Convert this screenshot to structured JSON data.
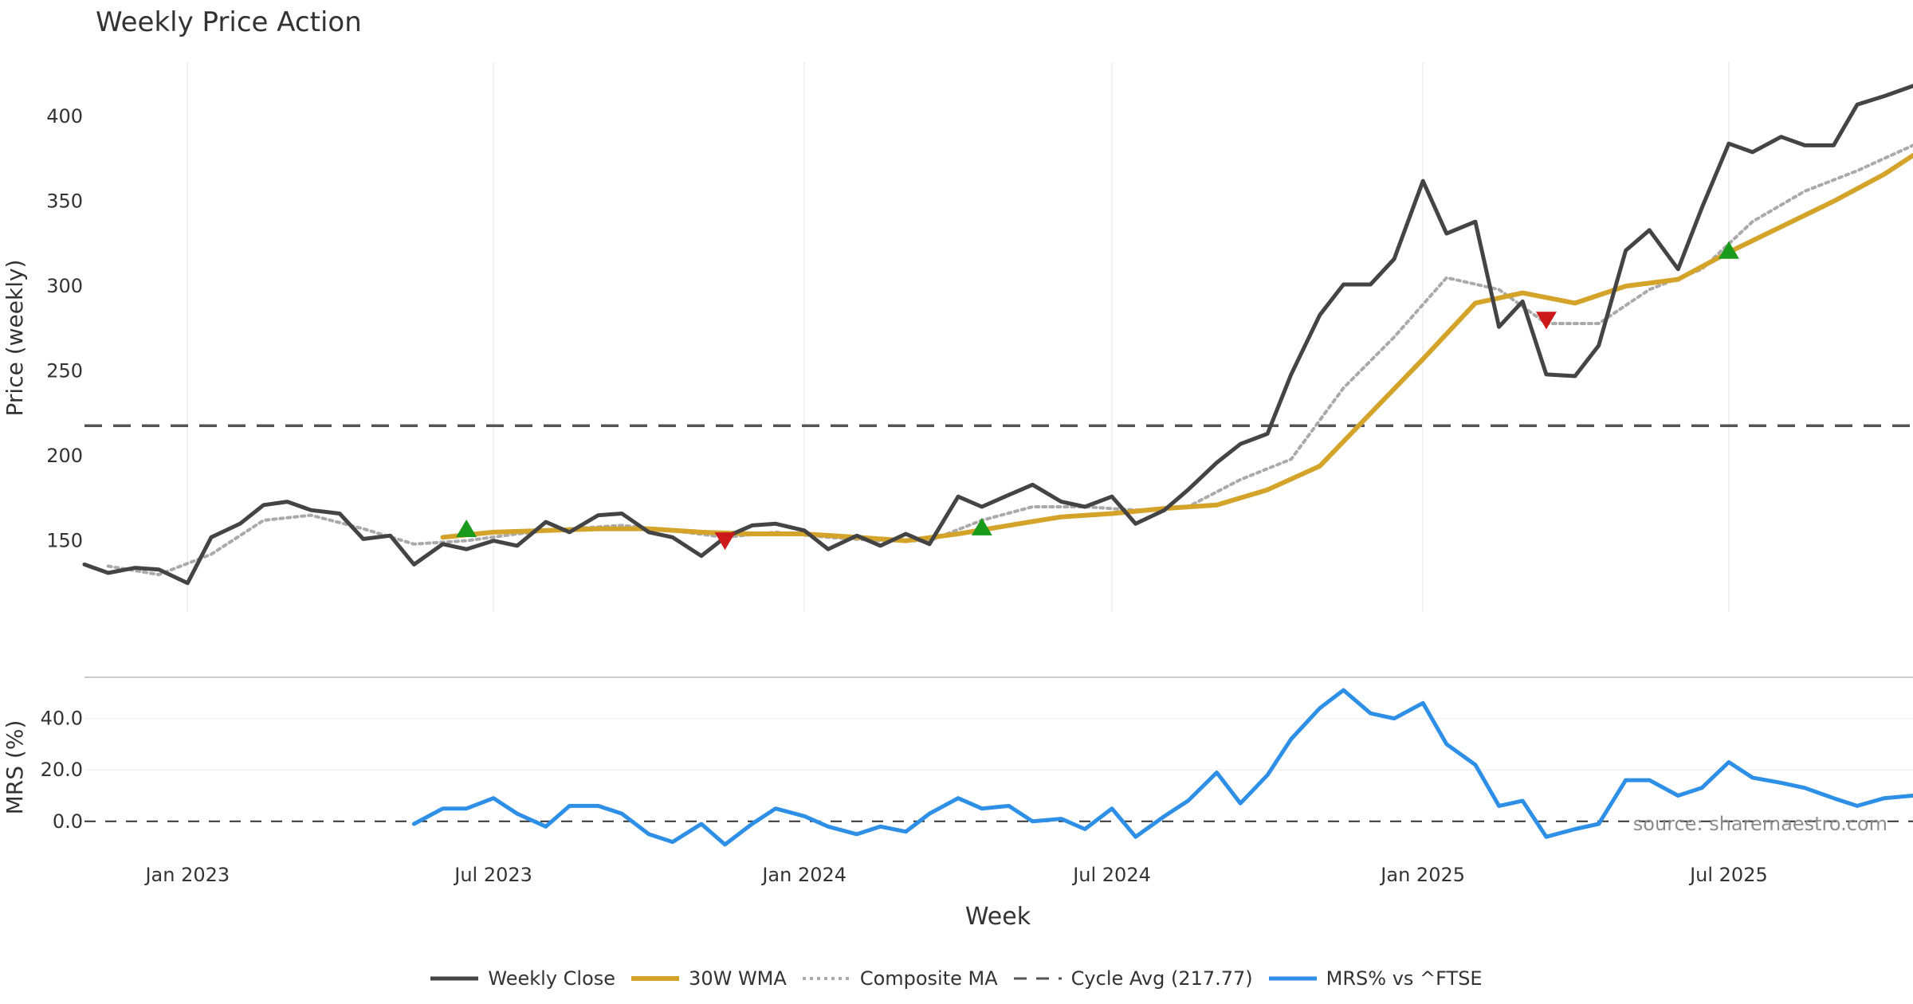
{
  "title": "Weekly Price Action",
  "source_label": "source: sharemaestro.com",
  "colors": {
    "close": "#444444",
    "wma": "#d4a32a",
    "composite": "#aaaaaa",
    "cycle": "#555555",
    "mrs": "#2e8fe6",
    "buy": "#1a9a1a",
    "sell": "#cc1a1a",
    "grid": "#ececec"
  },
  "chart_data": [
    {
      "type": "line",
      "panel": "price",
      "title": "Weekly Price Action",
      "xlabel": "",
      "ylabel": "Price (weekly)",
      "x_axis": {
        "start": "2022-11-01",
        "end": "2025-10-18"
      },
      "ylim": [
        108,
        432
      ],
      "yticks": [
        150,
        200,
        250,
        300,
        350,
        400
      ],
      "xticks": [
        {
          "label": "Jan 2023",
          "date": "2023-01-01"
        },
        {
          "label": "Jul 2023",
          "date": "2023-07-01"
        },
        {
          "label": "Jan 2024",
          "date": "2024-01-01"
        },
        {
          "label": "Jul 2024",
          "date": "2024-07-01"
        },
        {
          "label": "Jan 2025",
          "date": "2025-01-01"
        },
        {
          "label": "Jul 2025",
          "date": "2025-07-01"
        }
      ],
      "grid": "vertical",
      "series": [
        {
          "name": "Weekly Close",
          "points": [
            [
              "2022-11-01",
              136
            ],
            [
              "2022-11-15",
              131
            ],
            [
              "2022-12-01",
              134
            ],
            [
              "2022-12-15",
              133
            ],
            [
              "2023-01-01",
              125
            ],
            [
              "2023-01-15",
              152
            ],
            [
              "2023-02-01",
              160
            ],
            [
              "2023-02-15",
              171
            ],
            [
              "2023-03-01",
              173
            ],
            [
              "2023-03-15",
              168
            ],
            [
              "2023-04-01",
              166
            ],
            [
              "2023-04-15",
              151
            ],
            [
              "2023-05-01",
              153
            ],
            [
              "2023-05-15",
              136
            ],
            [
              "2023-06-01",
              148
            ],
            [
              "2023-06-15",
              145
            ],
            [
              "2023-07-01",
              150
            ],
            [
              "2023-07-15",
              147
            ],
            [
              "2023-08-01",
              161
            ],
            [
              "2023-08-15",
              155
            ],
            [
              "2023-09-01",
              165
            ],
            [
              "2023-09-15",
              166
            ],
            [
              "2023-10-01",
              155
            ],
            [
              "2023-10-15",
              152
            ],
            [
              "2023-11-01",
              141
            ],
            [
              "2023-11-15",
              152
            ],
            [
              "2023-12-01",
              159
            ],
            [
              "2023-12-15",
              160
            ],
            [
              "2024-01-01",
              156
            ],
            [
              "2024-01-15",
              145
            ],
            [
              "2024-02-01",
              153
            ],
            [
              "2024-02-15",
              147
            ],
            [
              "2024-03-01",
              154
            ],
            [
              "2024-03-15",
              148
            ],
            [
              "2024-04-01",
              176
            ],
            [
              "2024-04-15",
              170
            ],
            [
              "2024-05-01",
              177
            ],
            [
              "2024-05-15",
              183
            ],
            [
              "2024-06-01",
              173
            ],
            [
              "2024-06-15",
              170
            ],
            [
              "2024-07-01",
              176
            ],
            [
              "2024-07-15",
              160
            ],
            [
              "2024-08-01",
              168
            ],
            [
              "2024-08-15",
              180
            ],
            [
              "2024-09-01",
              196
            ],
            [
              "2024-09-15",
              207
            ],
            [
              "2024-10-01",
              213
            ],
            [
              "2024-10-15",
              248
            ],
            [
              "2024-11-01",
              283
            ],
            [
              "2024-11-15",
              301
            ],
            [
              "2024-12-01",
              301
            ],
            [
              "2024-12-15",
              316
            ],
            [
              "2025-01-01",
              362
            ],
            [
              "2025-01-15",
              331
            ],
            [
              "2025-02-01",
              338
            ],
            [
              "2025-02-15",
              276
            ],
            [
              "2025-03-01",
              291
            ],
            [
              "2025-03-15",
              248
            ],
            [
              "2025-04-01",
              247
            ],
            [
              "2025-04-15",
              265
            ],
            [
              "2025-05-01",
              321
            ],
            [
              "2025-05-15",
              333
            ],
            [
              "2025-06-01",
              310
            ],
            [
              "2025-06-15",
              346
            ],
            [
              "2025-07-01",
              384
            ],
            [
              "2025-07-15",
              379
            ],
            [
              "2025-08-01",
              388
            ],
            [
              "2025-08-15",
              383
            ],
            [
              "2025-09-01",
              383
            ],
            [
              "2025-09-15",
              407
            ],
            [
              "2025-10-01",
              412
            ],
            [
              "2025-10-18",
              418
            ]
          ]
        },
        {
          "name": "30W WMA",
          "points": [
            [
              "2023-06-01",
              152
            ],
            [
              "2023-07-01",
              155
            ],
            [
              "2023-08-01",
              156
            ],
            [
              "2023-09-01",
              157
            ],
            [
              "2023-10-01",
              157
            ],
            [
              "2023-11-01",
              155
            ],
            [
              "2023-12-01",
              154
            ],
            [
              "2024-01-01",
              154
            ],
            [
              "2024-02-01",
              152
            ],
            [
              "2024-03-01",
              150
            ],
            [
              "2024-04-01",
              154
            ],
            [
              "2024-05-01",
              159
            ],
            [
              "2024-06-01",
              164
            ],
            [
              "2024-07-01",
              166
            ],
            [
              "2024-08-01",
              169
            ],
            [
              "2024-09-01",
              171
            ],
            [
              "2024-10-01",
              180
            ],
            [
              "2024-11-01",
              194
            ],
            [
              "2024-12-01",
              225
            ],
            [
              "2025-01-01",
              257
            ],
            [
              "2025-02-01",
              290
            ],
            [
              "2025-03-01",
              296
            ],
            [
              "2025-04-01",
              290
            ],
            [
              "2025-05-01",
              300
            ],
            [
              "2025-06-01",
              304
            ],
            [
              "2025-07-01",
              320
            ],
            [
              "2025-08-01",
              335
            ],
            [
              "2025-09-01",
              350
            ],
            [
              "2025-10-01",
              366
            ],
            [
              "2025-10-18",
              377
            ]
          ]
        },
        {
          "name": "Composite MA",
          "points": [
            [
              "2022-11-15",
              135
            ],
            [
              "2022-12-15",
              130
            ],
            [
              "2023-01-15",
              142
            ],
            [
              "2023-02-15",
              162
            ],
            [
              "2023-03-15",
              165
            ],
            [
              "2023-04-15",
              157
            ],
            [
              "2023-05-15",
              148
            ],
            [
              "2023-06-15",
              150
            ],
            [
              "2023-07-15",
              154
            ],
            [
              "2023-08-15",
              157
            ],
            [
              "2023-09-15",
              159
            ],
            [
              "2023-10-15",
              156
            ],
            [
              "2023-11-15",
              152
            ],
            [
              "2023-12-15",
              155
            ],
            [
              "2024-01-15",
              152
            ],
            [
              "2024-02-15",
              150
            ],
            [
              "2024-03-15",
              150
            ],
            [
              "2024-04-15",
              162
            ],
            [
              "2024-05-15",
              170
            ],
            [
              "2024-06-15",
              170
            ],
            [
              "2024-07-15",
              168
            ],
            [
              "2024-08-15",
              170
            ],
            [
              "2024-09-15",
              186
            ],
            [
              "2024-10-15",
              198
            ],
            [
              "2024-11-15",
              240
            ],
            [
              "2024-12-15",
              270
            ],
            [
              "2025-01-15",
              305
            ],
            [
              "2025-02-15",
              298
            ],
            [
              "2025-03-15",
              278
            ],
            [
              "2025-04-15",
              278
            ],
            [
              "2025-05-15",
              298
            ],
            [
              "2025-06-15",
              310
            ],
            [
              "2025-07-15",
              338
            ],
            [
              "2025-08-15",
              356
            ],
            [
              "2025-09-15",
              368
            ],
            [
              "2025-10-18",
              383
            ]
          ]
        },
        {
          "name": "Cycle Avg (217.77)",
          "value": 217.77
        }
      ],
      "markers": [
        {
          "type": "buy",
          "x": "2023-06-15",
          "y": 157
        },
        {
          "type": "sell",
          "x": "2023-11-15",
          "y": 150
        },
        {
          "type": "buy",
          "x": "2024-04-15",
          "y": 158
        },
        {
          "type": "sell",
          "x": "2025-03-15",
          "y": 280
        },
        {
          "type": "buy",
          "x": "2025-07-01",
          "y": 321
        }
      ]
    },
    {
      "type": "line",
      "panel": "mrs",
      "xlabel": "Week",
      "ylabel": "MRS (%)",
      "ylim": [
        -14,
        56
      ],
      "yticks": [
        0,
        20,
        40
      ],
      "ytick_labels": [
        "0.0",
        "20.0",
        "40.0"
      ],
      "baseline": 0,
      "series": [
        {
          "name": "MRS% vs ^FTSE",
          "points": [
            [
              "2023-05-15",
              -1
            ],
            [
              "2023-06-01",
              5
            ],
            [
              "2023-06-15",
              5
            ],
            [
              "2023-07-01",
              9
            ],
            [
              "2023-07-15",
              3
            ],
            [
              "2023-08-01",
              -2
            ],
            [
              "2023-08-15",
              6
            ],
            [
              "2023-09-01",
              6
            ],
            [
              "2023-09-15",
              3
            ],
            [
              "2023-10-01",
              -5
            ],
            [
              "2023-10-15",
              -8
            ],
            [
              "2023-11-01",
              -1
            ],
            [
              "2023-11-15",
              -9
            ],
            [
              "2023-12-01",
              -1
            ],
            [
              "2023-12-15",
              5
            ],
            [
              "2024-01-01",
              2
            ],
            [
              "2024-01-15",
              -2
            ],
            [
              "2024-02-01",
              -5
            ],
            [
              "2024-02-15",
              -2
            ],
            [
              "2024-03-01",
              -4
            ],
            [
              "2024-03-15",
              3
            ],
            [
              "2024-04-01",
              9
            ],
            [
              "2024-04-15",
              5
            ],
            [
              "2024-05-01",
              6
            ],
            [
              "2024-05-15",
              0
            ],
            [
              "2024-06-01",
              1
            ],
            [
              "2024-06-15",
              -3
            ],
            [
              "2024-07-01",
              5
            ],
            [
              "2024-07-15",
              -6
            ],
            [
              "2024-08-01",
              2
            ],
            [
              "2024-08-15",
              8
            ],
            [
              "2024-09-01",
              19
            ],
            [
              "2024-09-15",
              7
            ],
            [
              "2024-10-01",
              18
            ],
            [
              "2024-10-15",
              32
            ],
            [
              "2024-11-01",
              44
            ],
            [
              "2024-11-15",
              51
            ],
            [
              "2024-12-01",
              42
            ],
            [
              "2024-12-15",
              40
            ],
            [
              "2025-01-01",
              46
            ],
            [
              "2025-01-15",
              30
            ],
            [
              "2025-02-01",
              22
            ],
            [
              "2025-02-15",
              6
            ],
            [
              "2025-03-01",
              8
            ],
            [
              "2025-03-15",
              -6
            ],
            [
              "2025-04-01",
              -3
            ],
            [
              "2025-04-15",
              -1
            ],
            [
              "2025-05-01",
              16
            ],
            [
              "2025-05-15",
              16
            ],
            [
              "2025-06-01",
              10
            ],
            [
              "2025-06-15",
              13
            ],
            [
              "2025-07-01",
              23
            ],
            [
              "2025-07-15",
              17
            ],
            [
              "2025-08-01",
              15
            ],
            [
              "2025-08-15",
              13
            ],
            [
              "2025-09-01",
              9
            ],
            [
              "2025-09-15",
              6
            ],
            [
              "2025-10-01",
              9
            ],
            [
              "2025-10-18",
              10
            ]
          ]
        }
      ]
    }
  ],
  "legend": [
    {
      "label": "Weekly Close",
      "style": "solid-dark"
    },
    {
      "label": "30W WMA",
      "style": "solid-gold"
    },
    {
      "label": "Composite MA",
      "style": "dotted-grey"
    },
    {
      "label": "Cycle Avg (217.77)",
      "style": "dashed-dark"
    },
    {
      "label": "MRS% vs ^FTSE",
      "style": "solid-blue"
    }
  ]
}
